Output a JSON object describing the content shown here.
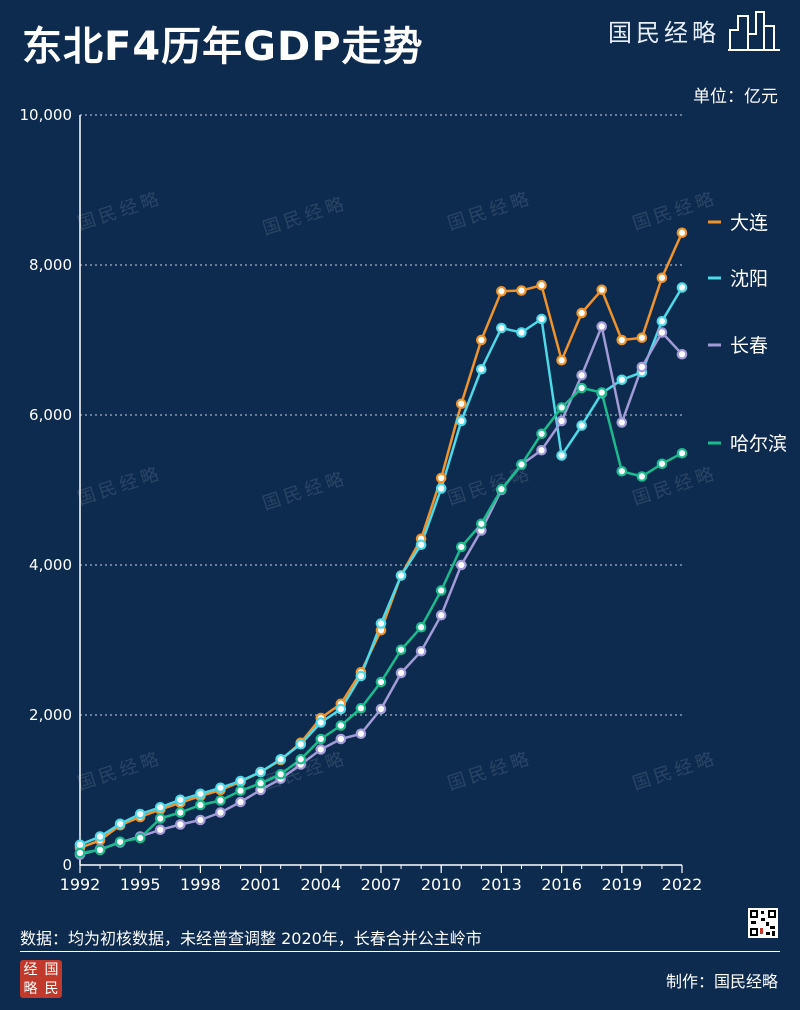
{
  "title": "东北F4历年GDP走势",
  "brand": {
    "name": "国民经略",
    "logo_icon": "city-skyline-icon"
  },
  "unit_label": "单位：亿元",
  "watermark_text": "国民经略",
  "footer": {
    "source": "数据：均为初核数据，未经普查调整   2020年，长春合并公主岭市",
    "credit": "制作：国民经略",
    "seal_chars": [
      "经",
      "国",
      "略",
      "民"
    ]
  },
  "chart_data": {
    "type": "line",
    "title": "东北F4历年GDP走势",
    "xlabel": "",
    "ylabel": "亿元",
    "x": [
      1992,
      1993,
      1994,
      1995,
      1996,
      1997,
      1998,
      1999,
      2000,
      2001,
      2002,
      2003,
      2004,
      2005,
      2006,
      2007,
      2008,
      2009,
      2010,
      2011,
      2012,
      2013,
      2014,
      2015,
      2016,
      2017,
      2018,
      2019,
      2020,
      2021,
      2022
    ],
    "xticks": [
      1992,
      1995,
      1998,
      2001,
      2004,
      2007,
      2010,
      2013,
      2016,
      2019,
      2022
    ],
    "ylim": [
      0,
      10000
    ],
    "yticks": [
      0,
      2000,
      4000,
      6000,
      8000,
      10000
    ],
    "ytick_labels": [
      "0",
      "2,000",
      "4,000",
      "6,000",
      "8,000",
      "10,000"
    ],
    "grid": "horizontal dotted",
    "legend": "right",
    "series": [
      {
        "name": "大连",
        "color": "#f0932b",
        "values": [
          230,
          330,
          530,
          640,
          740,
          830,
          920,
          1000,
          1110,
          1240,
          1400,
          1630,
          1960,
          2150,
          2570,
          3130,
          3860,
          4350,
          5160,
          6150,
          7000,
          7650,
          7660,
          7730,
          6730,
          7360,
          7670,
          7000,
          7030,
          7830,
          8430
        ]
      },
      {
        "name": "沈阳",
        "color": "#4dd9e8",
        "values": [
          270,
          380,
          550,
          680,
          770,
          870,
          950,
          1030,
          1120,
          1240,
          1410,
          1610,
          1900,
          2080,
          2520,
          3220,
          3860,
          4270,
          5020,
          5920,
          6610,
          7160,
          7100,
          7280,
          5460,
          5860,
          6290,
          6470,
          6570,
          7250,
          7700
        ]
      },
      {
        "name": "长春",
        "color": "#a29bd8",
        "values": [
          140,
          210,
          300,
          380,
          470,
          540,
          600,
          700,
          840,
          1000,
          1150,
          1340,
          1540,
          1680,
          1750,
          2080,
          2560,
          2850,
          3330,
          4000,
          4460,
          5000,
          5340,
          5530,
          5920,
          6530,
          7180,
          5900,
          6640,
          7100,
          6810
        ]
      },
      {
        "name": "哈尔滨",
        "color": "#1abc8c",
        "values": [
          160,
          200,
          310,
          360,
          620,
          700,
          800,
          860,
          990,
          1090,
          1210,
          1410,
          1680,
          1860,
          2090,
          2440,
          2870,
          3170,
          3660,
          4240,
          4550,
          5010,
          5340,
          5750,
          6100,
          6360,
          6300,
          5250,
          5180,
          5350,
          5490
        ]
      }
    ]
  }
}
